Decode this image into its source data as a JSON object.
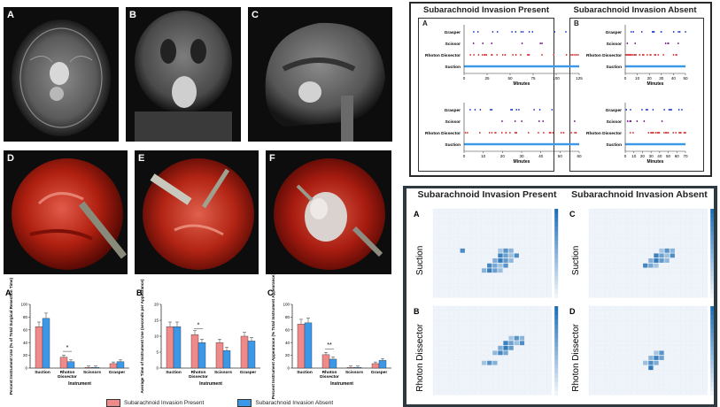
{
  "colors": {
    "present": "#f08a8a",
    "absent": "#3b98e8",
    "heat": "#1f6fb5"
  },
  "mri": {
    "A": "A",
    "B": "B",
    "C": "C"
  },
  "endo": {
    "D": "D",
    "E": "E",
    "F": "F"
  },
  "bar_charts": {
    "legend_present": "Subarachnoid Invasion Present",
    "legend_absent": "Subarachnoid Invasion Absent"
  },
  "chart_data": [
    {
      "type": "bar",
      "panel": "A",
      "title": "",
      "ylabel": "Percent Instrument Use (% of Total Surgical Resection Time)",
      "xlabel": "Instrument",
      "categories": [
        "Suction",
        "Rhoton Dissector",
        "Scissors",
        "Grasper"
      ],
      "series": [
        {
          "name": "Subarachnoid Invasion Present",
          "values": [
            65,
            17,
            1,
            7
          ]
        },
        {
          "name": "Subarachnoid Invasion Absent",
          "values": [
            78,
            10,
            1,
            10
          ]
        }
      ],
      "ylim": [
        0,
        100
      ],
      "yticks": [
        "0",
        "20",
        "40",
        "60",
        "80",
        "100"
      ],
      "annotation": "*"
    },
    {
      "type": "bar",
      "panel": "B",
      "ylabel": "Average Time of Instrument Use (seconds per Appearance)",
      "xlabel": "Instrument",
      "categories": [
        "Suction",
        "Rhoton Dissector",
        "Scissors",
        "Grasper"
      ],
      "series": [
        {
          "name": "Subarachnoid Invasion Present",
          "values": [
            13,
            10.5,
            8,
            10
          ]
        },
        {
          "name": "Subarachnoid Invasion Absent",
          "values": [
            13,
            8,
            5.5,
            8.5
          ]
        }
      ],
      "ylim": [
        0,
        20
      ],
      "yticks": [
        "0",
        "5",
        "10",
        "15",
        "20"
      ],
      "annotation": "*"
    },
    {
      "type": "bar",
      "panel": "C",
      "ylabel": "Percent Instrument Appearance (% Total Instrument Appearance)",
      "xlabel": "Instrument",
      "categories": [
        "Suction",
        "Rhoton Dissector",
        "Scissors",
        "Grasper"
      ],
      "series": [
        {
          "name": "Subarachnoid Invasion Present",
          "values": [
            69,
            21,
            1,
            7
          ]
        },
        {
          "name": "Subarachnoid Invasion Absent",
          "values": [
            71,
            14,
            1,
            12
          ]
        }
      ],
      "ylim": [
        0,
        100
      ],
      "yticks": [
        "0",
        "20",
        "40",
        "60",
        "80",
        "100"
      ],
      "annotation": "**"
    },
    {
      "type": "scatter",
      "panel": "A-timeline-1",
      "group": "Subarachnoid Invasion Present",
      "categories": [
        "Grasper",
        "Scissor",
        "Rhoton Dissector",
        "Suction"
      ],
      "xticks": [
        "0",
        "25",
        "50",
        "75",
        "100",
        "125"
      ],
      "xlabel": "Minutes",
      "xlim": [
        0,
        125
      ]
    },
    {
      "type": "scatter",
      "panel": "A-timeline-2",
      "group": "Subarachnoid Invasion Present",
      "categories": [
        "Grasper",
        "Scissor",
        "Rhoton Dissector",
        "Suction"
      ],
      "xticks": [
        "0",
        "10",
        "20",
        "30",
        "40",
        "50",
        "60"
      ],
      "xlabel": "Minutes",
      "xlim": [
        0,
        60
      ]
    },
    {
      "type": "scatter",
      "panel": "B-timeline-1",
      "group": "Subarachnoid Invasion Absent",
      "categories": [
        "Grasper",
        "Scissor",
        "Rhoton Dissector",
        "Suction"
      ],
      "xticks": [
        "0",
        "10",
        "20",
        "30",
        "40",
        "50"
      ],
      "xlabel": "Minutes",
      "xlim": [
        0,
        50
      ]
    },
    {
      "type": "scatter",
      "panel": "B-timeline-2",
      "group": "Subarachnoid Invasion Absent",
      "categories": [
        "Grasper",
        "Scissor",
        "Rhoton Dissector",
        "Suction"
      ],
      "xticks": [
        "0",
        "10",
        "20",
        "30",
        "40",
        "50",
        "60",
        "70"
      ],
      "xlabel": "Minutes",
      "xlim": [
        0,
        70
      ]
    },
    {
      "type": "heatmap",
      "panel": "A",
      "group": "Subarachnoid Invasion Present",
      "ylabel": "Suction",
      "hot_cells": [
        [
          12,
          8
        ],
        [
          13,
          8
        ],
        [
          14,
          8
        ],
        [
          12,
          9
        ],
        [
          13,
          9
        ],
        [
          14,
          9
        ],
        [
          15,
          9
        ],
        [
          11,
          10
        ],
        [
          12,
          10
        ],
        [
          13,
          10
        ],
        [
          14,
          10
        ],
        [
          10,
          11
        ],
        [
          11,
          11
        ],
        [
          12,
          11
        ],
        [
          13,
          11
        ],
        [
          9,
          12
        ],
        [
          10,
          12
        ],
        [
          11,
          12
        ],
        [
          12,
          12
        ],
        [
          5,
          8
        ]
      ]
    },
    {
      "type": "heatmap",
      "panel": "B",
      "group": "Subarachnoid Invasion Present",
      "ylabel": "Rhoton Dissector",
      "hot_cells": [
        [
          14,
          6
        ],
        [
          15,
          6
        ],
        [
          16,
          6
        ],
        [
          13,
          7
        ],
        [
          14,
          7
        ],
        [
          15,
          7
        ],
        [
          16,
          7
        ],
        [
          12,
          8
        ],
        [
          13,
          8
        ],
        [
          14,
          8
        ],
        [
          11,
          9
        ],
        [
          12,
          9
        ],
        [
          13,
          9
        ],
        [
          9,
          11
        ],
        [
          10,
          11
        ],
        [
          11,
          11
        ]
      ]
    },
    {
      "type": "heatmap",
      "panel": "C",
      "group": "Subarachnoid Invasion Absent",
      "ylabel": "Suction",
      "hot_cells": [
        [
          13,
          8
        ],
        [
          14,
          8
        ],
        [
          15,
          8
        ],
        [
          12,
          9
        ],
        [
          13,
          9
        ],
        [
          14,
          9
        ],
        [
          15,
          9
        ],
        [
          11,
          10
        ],
        [
          12,
          10
        ],
        [
          13,
          10
        ],
        [
          14,
          10
        ],
        [
          10,
          11
        ],
        [
          11,
          11
        ],
        [
          12,
          11
        ]
      ]
    },
    {
      "type": "heatmap",
      "panel": "D",
      "group": "Subarachnoid Invasion Absent",
      "ylabel": "Rhoton Dissector",
      "hot_cells": [
        [
          12,
          9
        ],
        [
          13,
          9
        ],
        [
          11,
          10
        ],
        [
          12,
          10
        ],
        [
          13,
          10
        ],
        [
          10,
          11
        ],
        [
          11,
          11
        ],
        [
          12,
          11
        ],
        [
          11,
          12
        ]
      ]
    }
  ],
  "timeline": {
    "present_title": "Subarachnoid Invasion Present",
    "absent_title": "Subarachnoid Invasion Absent",
    "letter_a": "A",
    "letter_b": "B",
    "xlabel": "Minutes"
  },
  "heatmaps": {
    "present_title": "Subarachnoid Invasion Present",
    "absent_title": "Subarachnoid Invasion Absent",
    "A": "A",
    "B": "B",
    "C": "C",
    "D": "D",
    "row1": "Suction",
    "row2": "Rhoton Dissector"
  }
}
